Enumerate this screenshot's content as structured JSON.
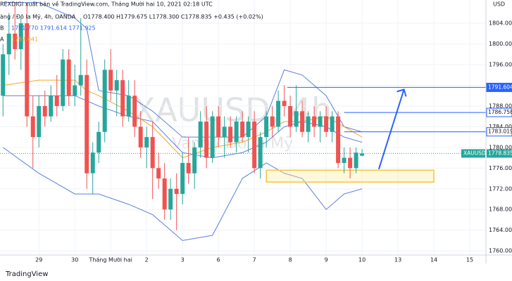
{
  "header": {
    "line1": "REXDIGI xuất bản về TradingView.com, Tháng Mười hai 10, 2021 02:18 UTC",
    "line2": "àng / Đô la Mỹ, 4h, OANDA",
    "ohlc": "O1778.400 H1779.675 L1778.300 C1778.835 +0.435 (+0.02%)",
    "bb": "B",
    "bb_values": "1781.770  1791.614  1771.925",
    "ma": "A",
    "ma_value": "1782.041"
  },
  "footer": "TradingView",
  "chart_data": {
    "type": "candlestick",
    "watermark": "XAUUSD, 4h",
    "watermark_sub": "Vàng / Đô la Mỹ",
    "currency": "USD",
    "xlim": [
      -0.5,
      80.7
    ],
    "ylim": [
      1759.2,
      1808.5
    ],
    "xticks": [
      {
        "value": 6,
        "label": "29"
      },
      {
        "value": 12,
        "label": "30"
      },
      {
        "value": 18,
        "label": "Tháng Mười hai"
      },
      {
        "value": 24,
        "label": "2"
      },
      {
        "value": 30,
        "label": "3"
      },
      {
        "value": 36,
        "label": "6"
      },
      {
        "value": 42,
        "label": "7"
      },
      {
        "value": 48,
        "label": "8"
      },
      {
        "value": 54,
        "label": "9"
      },
      {
        "value": 60,
        "label": "10"
      },
      {
        "value": 66,
        "label": "13"
      },
      {
        "value": 72,
        "label": "14"
      },
      {
        "value": 78,
        "label": "15"
      }
    ],
    "yticks": [
      {
        "value": 1804,
        "label": "1804.000"
      },
      {
        "value": 1800,
        "label": "1800.000"
      },
      {
        "value": 1796,
        "label": "1796.000"
      },
      {
        "value": 1792,
        "label": "1792.000"
      },
      {
        "value": 1788,
        "label": "1788.000"
      },
      {
        "value": 1784,
        "label": "1784.000"
      },
      {
        "value": 1780,
        "label": "1780.000"
      },
      {
        "value": 1776,
        "label": "1776.000"
      },
      {
        "value": 1772,
        "label": "1772.000"
      },
      {
        "value": 1768,
        "label": "1768.000"
      },
      {
        "value": 1764,
        "label": "1764.000"
      },
      {
        "value": 1760,
        "label": "1760.000"
      }
    ],
    "up_color": "#26a69a",
    "down_color": "#ef5350",
    "x": [
      0,
      1,
      2,
      3,
      4,
      5,
      6,
      7,
      8,
      9,
      10,
      11,
      12,
      13,
      14,
      15,
      16,
      17,
      18,
      19,
      20,
      21,
      22,
      23,
      24,
      25,
      26,
      27,
      28,
      29,
      30,
      31,
      32,
      33,
      34,
      35,
      36,
      37,
      38,
      39,
      40,
      41,
      42,
      43,
      44,
      45,
      46,
      47,
      48,
      49,
      50,
      51,
      52,
      53,
      54,
      55,
      56,
      57,
      58,
      59,
      60
    ],
    "open": [
      1790,
      1798,
      1802,
      1799,
      1804,
      1786,
      1782,
      1788,
      1786,
      1790,
      1788,
      1797,
      1790,
      1792,
      1794,
      1775,
      1779,
      1783,
      1795,
      1791,
      1793,
      1786,
      1790,
      1784,
      1780,
      1782,
      1776,
      1774,
      1768,
      1772,
      1771,
      1777,
      1775,
      1780,
      1785,
      1778,
      1786,
      1782,
      1784,
      1781,
      1785,
      1782,
      1785,
      1776,
      1782,
      1786,
      1784,
      1789,
      1788,
      1784,
      1787,
      1783,
      1786,
      1784,
      1786,
      1783,
      1786,
      1777,
      1778,
      1776,
      1778.4
    ],
    "high": [
      1800,
      1806,
      1808,
      1805,
      1808,
      1790,
      1790,
      1791,
      1792,
      1794,
      1799,
      1799,
      1796,
      1805,
      1797,
      1781,
      1785,
      1797,
      1799,
      1795,
      1795,
      1793,
      1793,
      1787,
      1784,
      1785,
      1779,
      1777,
      1774,
      1775,
      1779,
      1782,
      1781,
      1787,
      1788,
      1787,
      1788,
      1786,
      1786,
      1786,
      1787,
      1786,
      1787,
      1783,
      1787,
      1788,
      1791,
      1792,
      1790,
      1792,
      1789,
      1787,
      1788,
      1787,
      1788,
      1787,
      1787,
      1780,
      1780,
      1780,
      1779.675
    ],
    "low": [
      1786,
      1794,
      1797,
      1795,
      1784,
      1776,
      1780,
      1784,
      1785,
      1786,
      1787,
      1788,
      1788,
      1790,
      1772,
      1771,
      1777,
      1781,
      1789,
      1786,
      1784,
      1785,
      1782,
      1778,
      1776,
      1770,
      1772,
      1766,
      1766,
      1764,
      1769,
      1773,
      1772,
      1778,
      1776,
      1777,
      1780,
      1778,
      1780,
      1779,
      1781,
      1779,
      1775,
      1774,
      1780,
      1782,
      1783,
      1786,
      1782,
      1783,
      1782,
      1781,
      1782,
      1781,
      1782,
      1781,
      1776,
      1775,
      1774,
      1775,
      1778.3
    ],
    "close": [
      1798,
      1802,
      1799,
      1804,
      1786,
      1782,
      1788,
      1786,
      1790,
      1788,
      1797,
      1790,
      1792,
      1794,
      1775,
      1779,
      1783,
      1795,
      1791,
      1793,
      1786,
      1790,
      1784,
      1780,
      1782,
      1776,
      1774,
      1768,
      1772,
      1771,
      1777,
      1775,
      1780,
      1785,
      1778,
      1786,
      1782,
      1784,
      1781,
      1785,
      1782,
      1785,
      1776,
      1782,
      1786,
      1784,
      1789,
      1788,
      1784,
      1787,
      1783,
      1786,
      1784,
      1786,
      1783,
      1786,
      1777,
      1778,
      1776,
      1779,
      1778.835
    ],
    "bands": [
      {
        "color": "#5b7fe0",
        "x": [
          0,
          6,
          12,
          14,
          16,
          21,
          25,
          30,
          35,
          40,
          44,
          47,
          50,
          54,
          57,
          60
        ],
        "values": [
          1808,
          1808,
          1805,
          1803,
          1791,
          1790,
          1787,
          1782,
          1782,
          1782,
          1786,
          1795,
          1794,
          1790,
          1784,
          1783
        ]
      },
      {
        "color": "#5b7fe0",
        "x": [
          0,
          6,
          12,
          14,
          16,
          21,
          25,
          30,
          35,
          40,
          44,
          47,
          50,
          54,
          57,
          60
        ],
        "values": [
          1790,
          1790,
          1790,
          1789,
          1788,
          1786,
          1785,
          1779,
          1778,
          1779,
          1781,
          1784,
          1785,
          1784,
          1782,
          1781
        ]
      },
      {
        "color": "#f5a623",
        "x": [
          0,
          6,
          12,
          14,
          16,
          21,
          25,
          30,
          35,
          40,
          44,
          47,
          50,
          54,
          57,
          60
        ],
        "values": [
          1792,
          1793,
          1793,
          1791,
          1790,
          1787,
          1784,
          1778,
          1780,
          1781,
          1783,
          1785,
          1785,
          1786,
          1784,
          1782
        ]
      },
      {
        "color": "#5b7fe0",
        "x": [
          0,
          6,
          12,
          14,
          16,
          21,
          25,
          30,
          35,
          40,
          44,
          47,
          50,
          54,
          57,
          60
        ],
        "values": [
          1780,
          1775,
          1771,
          1771,
          1771,
          1769,
          1767,
          1762,
          1763,
          1774,
          1777,
          1775,
          1774,
          1768,
          1771,
          1772
        ]
      }
    ],
    "levels": [
      {
        "value": 1791.604,
        "label": "1791.604",
        "from": 47.5,
        "color": "#2962ff"
      },
      {
        "value": 1786.758,
        "label": "1786.758",
        "from": 57,
        "color": "#2962ff"
      },
      {
        "value": 1783.019,
        "label": "1783.019",
        "from": 57,
        "color": "#2962ff"
      }
    ],
    "last": {
      "name": "XAUUSD",
      "value": 1778.835,
      "label": "1778.835",
      "color": "#26a69a"
    },
    "zone": {
      "x": [
        44,
        72
      ],
      "y": [
        1773.3,
        1775.6
      ],
      "color": "#f5c542"
    },
    "arrow": {
      "x": [
        62.8,
        67
      ],
      "y": [
        1775.8,
        1791.2
      ],
      "color": "#2962ff"
    }
  }
}
